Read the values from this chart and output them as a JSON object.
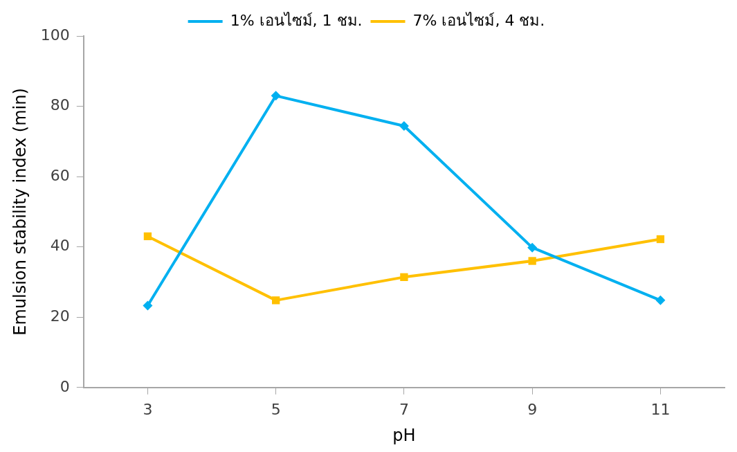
{
  "chart_data": {
    "type": "line",
    "xlabel": "pH",
    "ylabel": "Emulsion stability index (min)",
    "categories": [
      "3",
      "5",
      "7",
      "9",
      "11"
    ],
    "series": [
      {
        "name": "1% เอนไซม์, 1 ชม.",
        "color": "#00b0f0",
        "marker": "diamond",
        "values": [
          23.3,
          83.0,
          74.4,
          39.8,
          24.8
        ]
      },
      {
        "name": "7% เอนไซม์, 4 ชม.",
        "color": "#ffc000",
        "marker": "square",
        "values": [
          43.0,
          24.8,
          31.4,
          36.0,
          42.2
        ]
      }
    ],
    "ylim": [
      0,
      100
    ],
    "yticks": [
      0,
      20,
      40,
      60,
      80,
      100
    ],
    "grid": false,
    "legend": "top",
    "line_style": "solid"
  }
}
